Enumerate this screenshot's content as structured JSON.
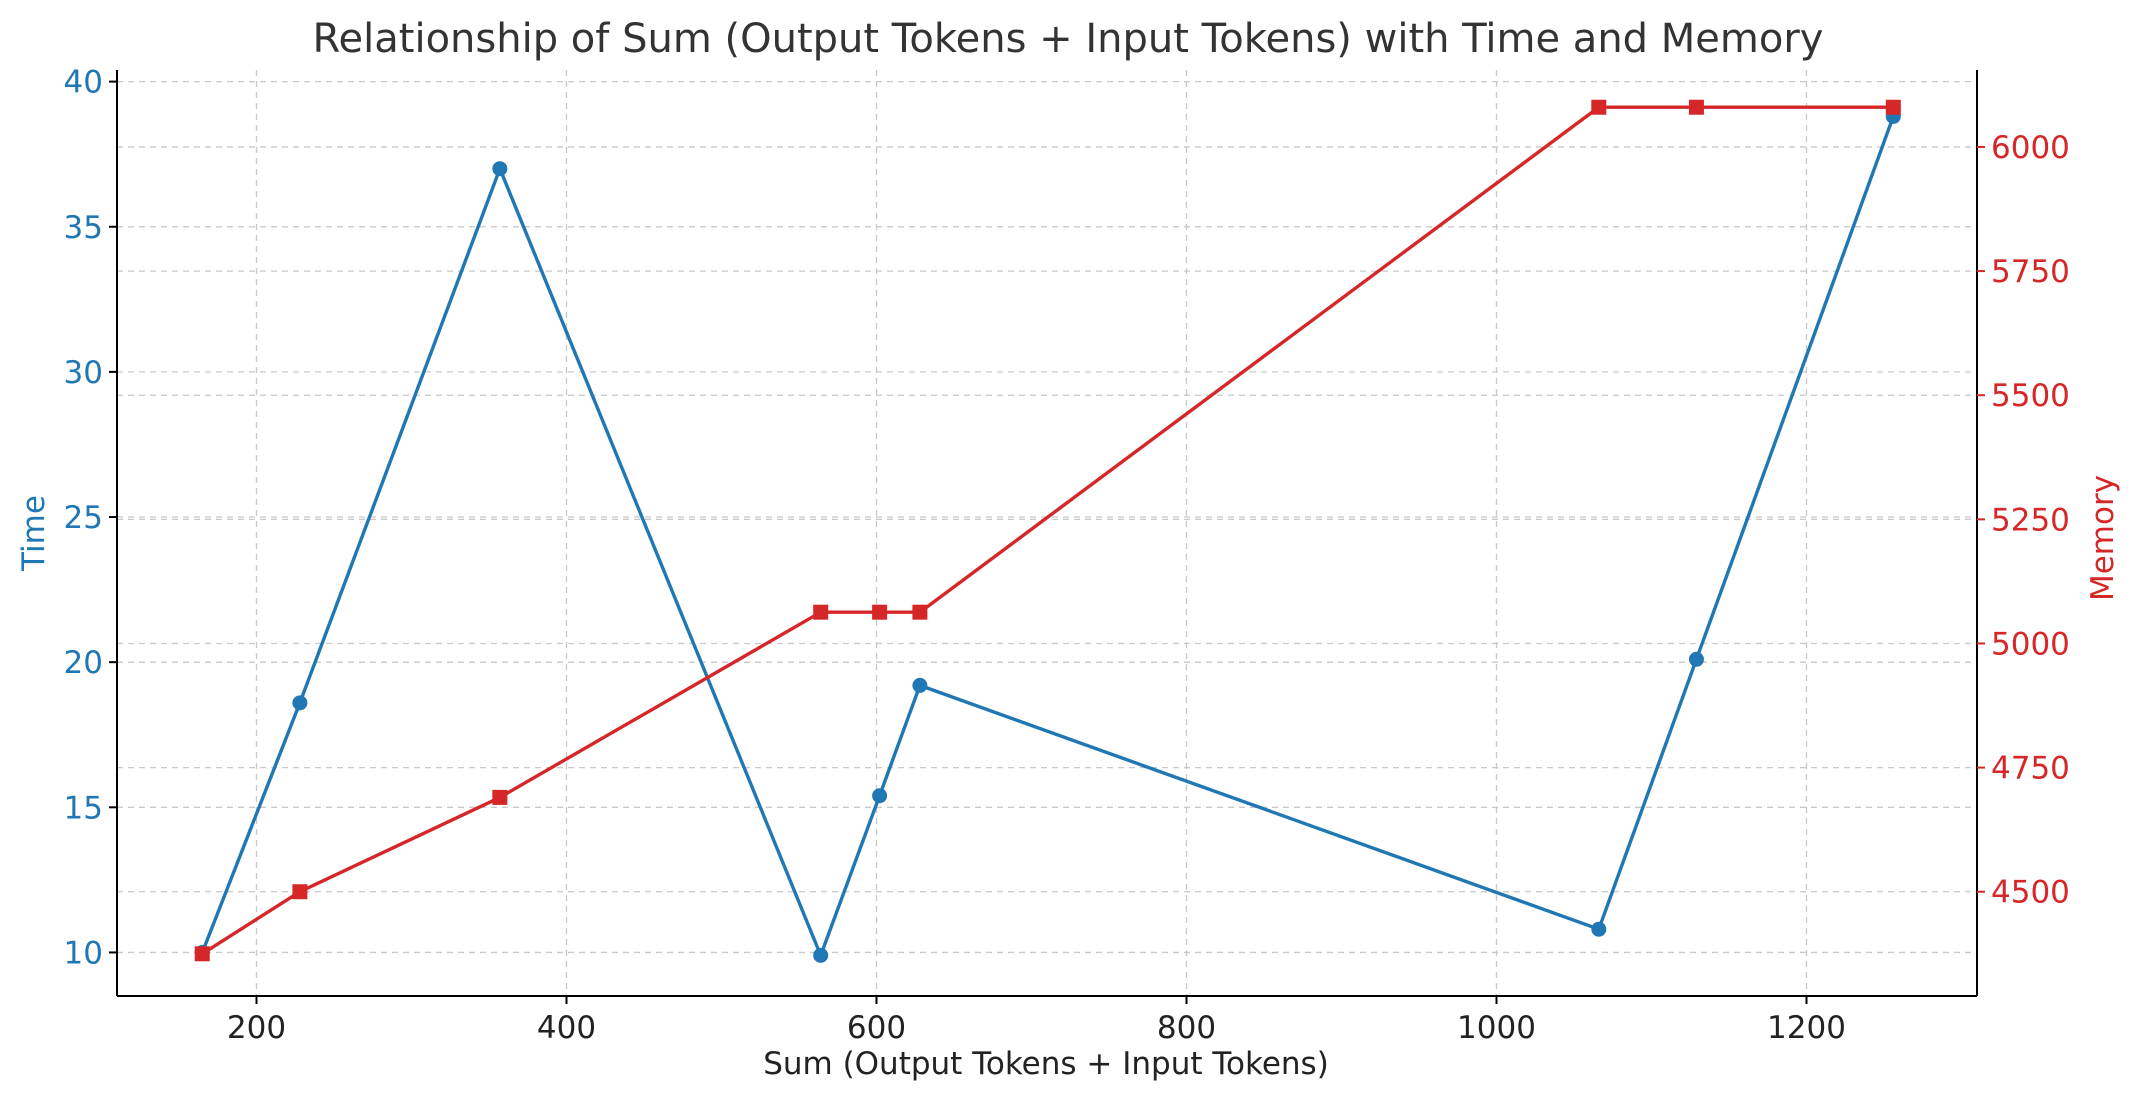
{
  "chart_data": {
    "type": "line",
    "title": "Relationship of Sum (Output Tokens + Input Tokens) with Time and Memory",
    "xlabel": "Sum (Output Tokens + Input Tokens)",
    "xlim": [
      110,
      1310
    ],
    "xticks": [
      200,
      400,
      600,
      800,
      1000,
      1200
    ],
    "x": [
      165,
      228,
      357,
      564,
      602,
      628,
      1066,
      1129,
      1256
    ],
    "series": [
      {
        "name": "Time",
        "axis": "left",
        "marker": "circle",
        "color": "#1f77b4",
        "values": [
          10.0,
          18.6,
          37.0,
          9.9,
          15.4,
          19.2,
          10.8,
          20.1,
          38.8
        ]
      },
      {
        "name": "Memory",
        "axis": "right",
        "marker": "square",
        "color": "#d62728",
        "values": [
          4375,
          4500,
          4690,
          5063,
          5063,
          5063,
          6080,
          6080,
          6080
        ]
      }
    ],
    "y_left": {
      "label": "Time",
      "color": "#1f77b4",
      "lim": [
        8.5,
        40.4
      ],
      "ticks": [
        10,
        15,
        20,
        25,
        30,
        35,
        40
      ]
    },
    "y_right": {
      "label": "Memory",
      "color": "#d62728",
      "lim": [
        4290,
        6155
      ],
      "ticks": [
        4500,
        4750,
        5000,
        5250,
        5500,
        5750,
        6000
      ]
    },
    "grid": true
  }
}
